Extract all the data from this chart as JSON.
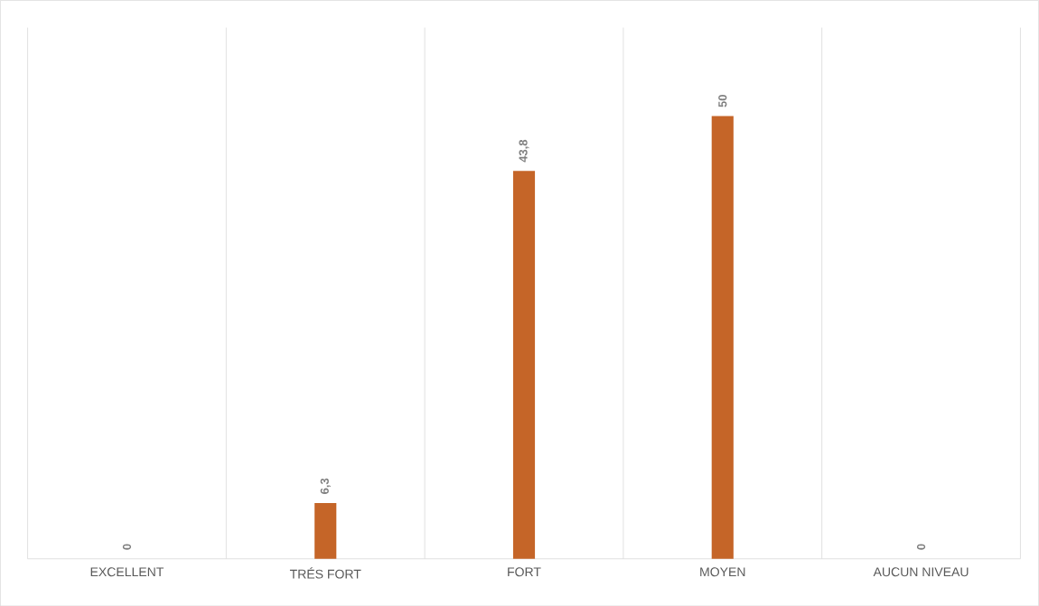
{
  "chart_data": {
    "type": "bar",
    "categories": [
      "EXCELLENT",
      "TRÉS FORT",
      "FORT",
      "MOYEN",
      "AUCUN NIVEAU"
    ],
    "values": [
      0,
      6.3,
      43.8,
      50,
      0
    ],
    "value_labels": [
      "0",
      "6,3",
      "43,8",
      "50",
      "0"
    ],
    "color": "#c56528",
    "grid": "x"
  }
}
